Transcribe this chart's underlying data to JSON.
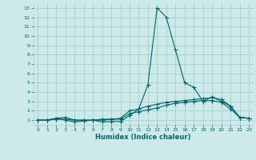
{
  "xlabel": "Humidex (Indice chaleur)",
  "bg_color": "#cceaea",
  "grid_color": "#aacccc",
  "line_color": "#006666",
  "xlim": [
    -0.5,
    23.5
  ],
  "ylim": [
    0.5,
    13.5
  ],
  "xticks": [
    0,
    1,
    2,
    3,
    4,
    5,
    6,
    7,
    8,
    9,
    10,
    11,
    12,
    13,
    14,
    15,
    16,
    17,
    18,
    19,
    20,
    21,
    22,
    23
  ],
  "yticks": [
    1,
    2,
    3,
    4,
    5,
    6,
    7,
    8,
    9,
    10,
    11,
    12,
    13
  ],
  "line1_x": [
    0,
    1,
    2,
    3,
    4,
    5,
    6,
    7,
    8,
    9,
    10,
    11,
    12,
    13,
    14,
    15,
    16,
    17,
    18,
    19,
    20,
    21,
    22,
    23
  ],
  "line1_y": [
    1.0,
    1.0,
    1.2,
    1.0,
    0.8,
    0.9,
    1.0,
    0.8,
    0.85,
    0.85,
    1.5,
    2.2,
    4.8,
    13.0,
    12.0,
    8.5,
    5.0,
    4.5,
    3.0,
    3.5,
    3.0,
    2.5,
    1.3,
    1.2
  ],
  "line2_x": [
    0,
    1,
    2,
    3,
    4,
    5,
    6,
    7,
    8,
    9,
    10,
    11,
    12,
    13,
    14,
    15,
    16,
    17,
    18,
    19,
    20,
    21,
    22,
    23
  ],
  "line2_y": [
    1.0,
    1.0,
    1.2,
    1.3,
    1.0,
    1.0,
    1.0,
    1.1,
    1.1,
    1.2,
    2.0,
    2.2,
    2.5,
    2.7,
    2.9,
    3.0,
    3.1,
    3.2,
    3.3,
    3.4,
    3.2,
    2.5,
    1.3,
    1.2
  ],
  "line3_x": [
    0,
    1,
    2,
    3,
    4,
    5,
    6,
    7,
    8,
    9,
    10,
    11,
    12,
    13,
    14,
    15,
    16,
    17,
    18,
    19,
    20,
    21,
    22,
    23
  ],
  "line3_y": [
    1.0,
    1.0,
    1.1,
    1.1,
    1.0,
    1.0,
    1.0,
    1.0,
    1.1,
    1.1,
    1.7,
    1.9,
    2.1,
    2.3,
    2.6,
    2.8,
    2.9,
    3.0,
    3.1,
    3.1,
    2.9,
    2.2,
    1.3,
    1.2
  ]
}
